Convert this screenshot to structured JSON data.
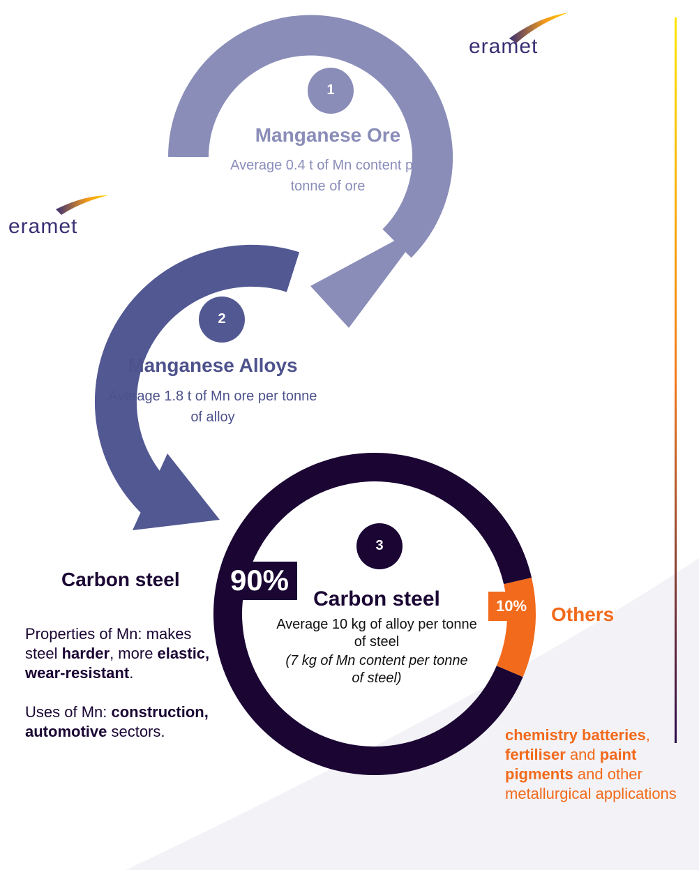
{
  "brand": "eramet",
  "steps": [
    {
      "number": "1",
      "title": "Manganese Ore",
      "text": "Average 0.4 t of Mn content per tonne of ore"
    },
    {
      "number": "2",
      "title": "Manganese Alloys",
      "text": "Average 1.8 t of Mn ore per tonne of alloy"
    },
    {
      "number": "3",
      "title": "Carbon steel",
      "text": "Average 10 kg of alloy per tonne of steel",
      "note": "(7 kg of Mn content per tonne of steel)"
    }
  ],
  "donut": {
    "values": [
      90,
      10
    ],
    "value_labels": [
      "90%",
      "10%"
    ],
    "colors": [
      "#1a0533",
      "#f26a1b"
    ]
  },
  "left": {
    "title": "Carbon steel",
    "paragraphs": [
      [
        {
          "text": "Properties of Mn: makes steel "
        },
        {
          "text": "harder",
          "bold": true
        },
        {
          "text": ", more "
        },
        {
          "text": "elastic, wear-resistant",
          "bold": true
        },
        {
          "text": "."
        }
      ],
      [
        {
          "text": "Uses of Mn: "
        },
        {
          "text": "construction, automotive",
          "bold": true
        },
        {
          "text": " sectors."
        }
      ]
    ]
  },
  "right": {
    "title": "Others",
    "paragraphs": [
      [
        {
          "text": "chemistry batteries",
          "bold": true
        },
        {
          "text": ", "
        },
        {
          "text": "fertiliser",
          "bold": true
        },
        {
          "text": " and "
        },
        {
          "text": "paint pigments",
          "bold": true
        },
        {
          "text": " and other metallurgical applications"
        }
      ]
    ]
  }
}
